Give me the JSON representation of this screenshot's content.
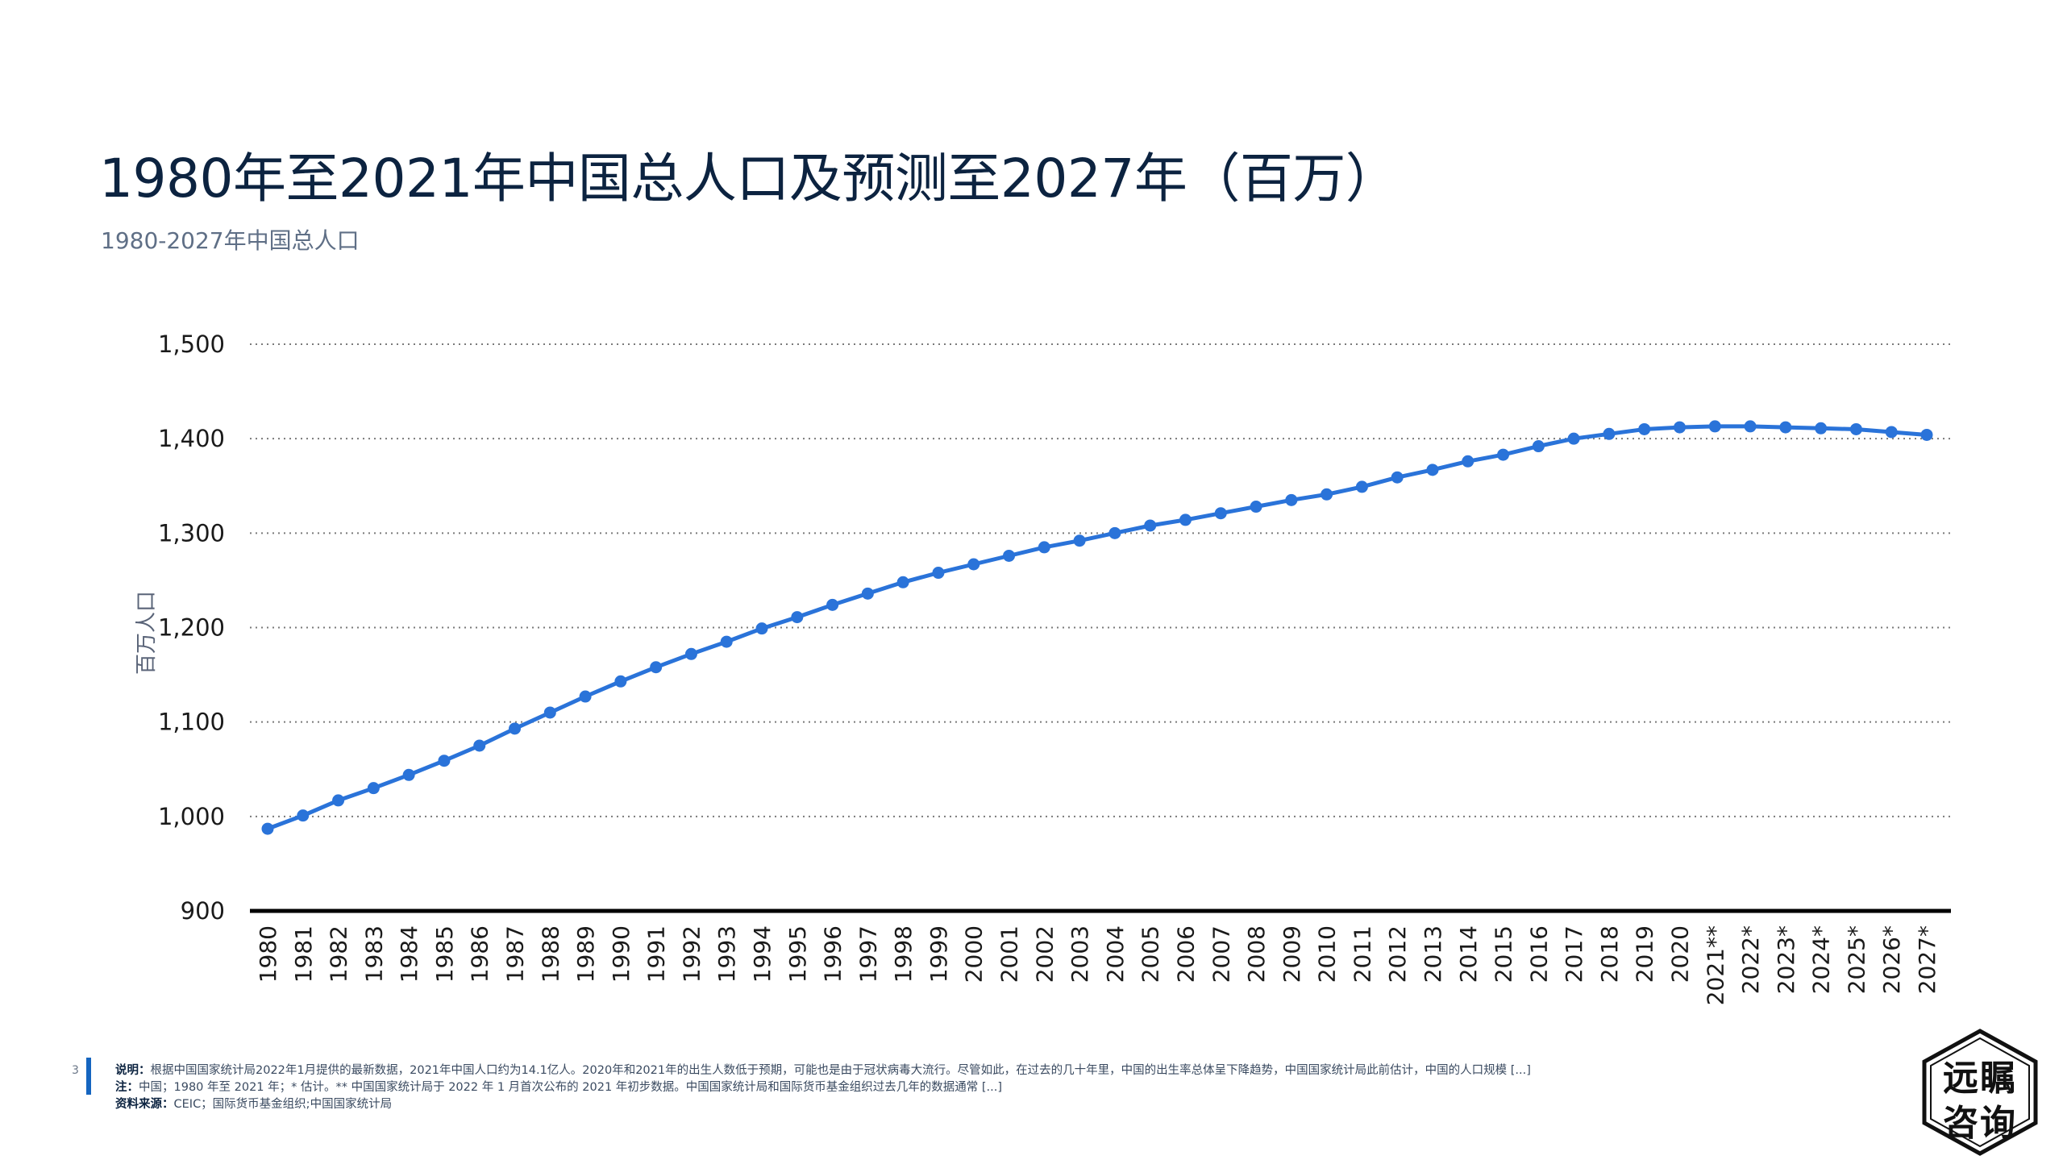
{
  "title": "1980年至2021年中国总人口及预测至2027年（百万）",
  "subtitle": "1980-2027年中国总人口",
  "page_number": "3",
  "notes": {
    "line1_label": "说明：",
    "line1_text": "根据中国国家统计局2022年1月提供的最新数据，2021年中国人口约为14.1亿人。2020年和2021年的出生人数低于预期，可能也是由于冠状病毒大流行。尽管如此，在过去的几十年里，中国的出生率总体呈下降趋势，中国国家统计局此前估计，中国的人口规模 [...]",
    "line2_label": "注：",
    "line2_text": "中国；1980 年至 2021 年；* 估计。** 中国国家统计局于 2022 年 1 月首次公布的 2021 年初步数据。中国国家统计局和国际货币基金组织过去几年的数据通常 [...]",
    "line3_label": "资料来源：",
    "line3_text": "CEIC；国际货币基金组织;中国国家统计局"
  },
  "logo": {
    "line1": "远瞩",
    "line2": "咨询"
  },
  "colors": {
    "series": "#2a73d9",
    "title": "#0c2340",
    "grid": "#7a7a7a",
    "axis": "#000000"
  },
  "chart_data": {
    "type": "line",
    "title": "1980年至2021年中国总人口及预测至2027年（百万）",
    "subtitle": "1980-2027年中国总人口",
    "xlabel": "",
    "ylabel": "百万人口",
    "ylim": [
      900,
      1500
    ],
    "yticks": [
      "900",
      "1,000",
      "1,100",
      "1,200",
      "1,300",
      "1,400",
      "1,500"
    ],
    "ytick_values": [
      900,
      1000,
      1100,
      1200,
      1300,
      1400,
      1500
    ],
    "grid": "horizontal dotted",
    "categories": [
      "1980",
      "1981",
      "1982",
      "1983",
      "1984",
      "1985",
      "1986",
      "1987",
      "1988",
      "1989",
      "1990",
      "1991",
      "1992",
      "1993",
      "1994",
      "1995",
      "1996",
      "1997",
      "1998",
      "1999",
      "2000",
      "2001",
      "2002",
      "2003",
      "2004",
      "2005",
      "2006",
      "2007",
      "2008",
      "2009",
      "2010",
      "2011",
      "2012",
      "2013",
      "2014",
      "2015",
      "2016",
      "2017",
      "2018",
      "2019",
      "2020",
      "2021**",
      "2022*",
      "2023*",
      "2024*",
      "2025*",
      "2026*",
      "2027*"
    ],
    "series": [
      {
        "values": [
          987,
          1001,
          1017,
          1030,
          1044,
          1059,
          1075,
          1093,
          1110,
          1127,
          1143,
          1158,
          1172,
          1185,
          1199,
          1211,
          1224,
          1236,
          1248,
          1258,
          1267,
          1276,
          1285,
          1292,
          1300,
          1308,
          1314,
          1321,
          1328,
          1335,
          1341,
          1349,
          1359,
          1367,
          1376,
          1383,
          1392,
          1400,
          1405,
          1410,
          1412,
          1413,
          1413,
          1412,
          1411,
          1410,
          1407,
          1404
        ]
      }
    ]
  }
}
